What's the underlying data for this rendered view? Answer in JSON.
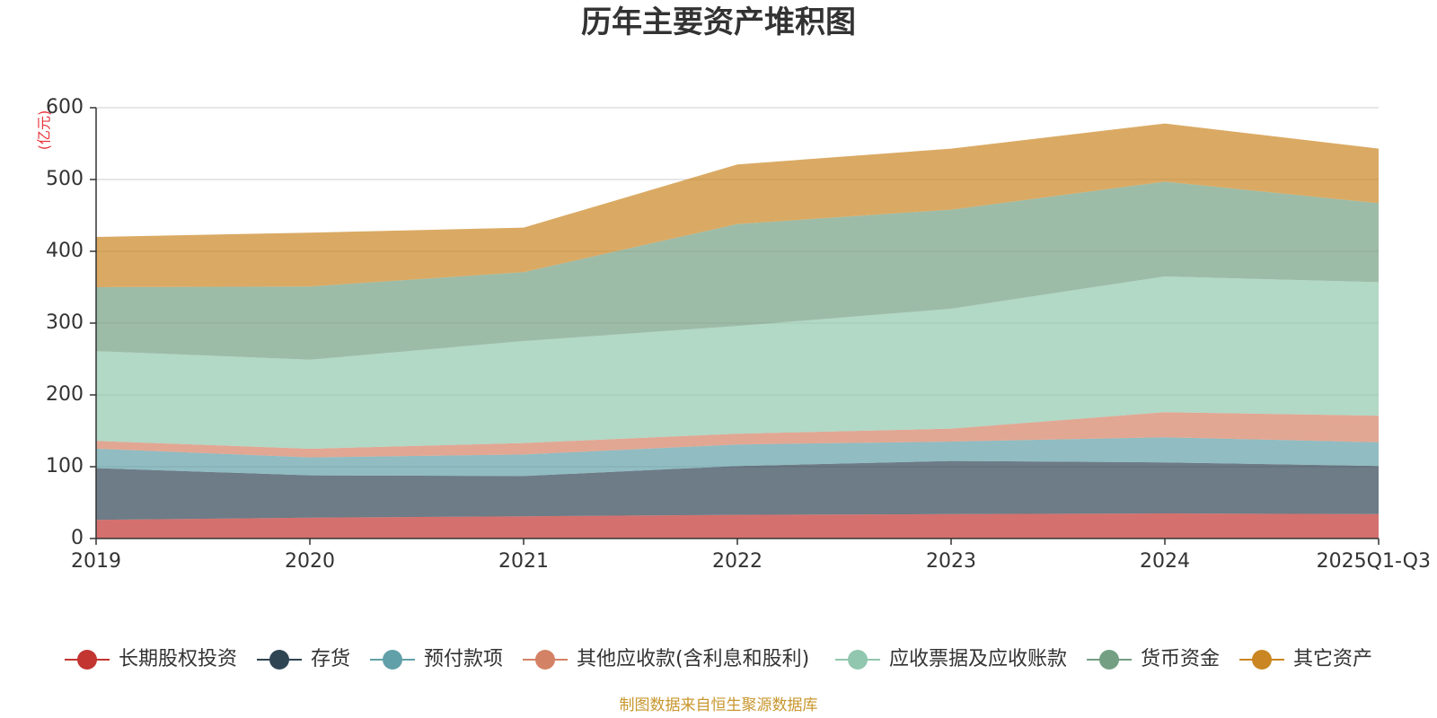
{
  "chart_data": {
    "type": "area",
    "stacked": true,
    "title": "历年主要资产堆积图",
    "unit_label": "(亿元)",
    "categories": [
      "2019",
      "2020",
      "2021",
      "2022",
      "2023",
      "2024",
      "2025Q1-Q3"
    ],
    "ylim": [
      0,
      600
    ],
    "yticks": [
      0,
      100,
      200,
      300,
      400,
      500,
      600
    ],
    "grid": true,
    "legend_position": "bottom",
    "series": [
      {
        "name": "长期股权投资",
        "color": "#c23531",
        "values": [
          26,
          29,
          31,
          33,
          34,
          35,
          34
        ]
      },
      {
        "name": "存货",
        "color": "#2f4554",
        "values": [
          72,
          59,
          56,
          68,
          74,
          71,
          67
        ]
      },
      {
        "name": "预付款项",
        "color": "#61a0a8",
        "values": [
          27,
          25,
          30,
          30,
          27,
          35,
          33
        ]
      },
      {
        "name": "其他应收款(含利息和股利)",
        "color": "#d48265",
        "values": [
          11,
          12,
          16,
          15,
          18,
          35,
          37
        ]
      },
      {
        "name": "应收票据及应收账款",
        "color": "#91c7ae",
        "values": [
          125,
          124,
          142,
          150,
          167,
          189,
          186
        ]
      },
      {
        "name": "货币资金",
        "color": "#749f83",
        "values": [
          89,
          102,
          96,
          142,
          138,
          132,
          110
        ]
      },
      {
        "name": "其它资产",
        "color": "#ca8622",
        "values": [
          70,
          75,
          62,
          83,
          85,
          81,
          76
        ]
      }
    ]
  },
  "footer": {
    "source_text": "制图数据来自恒生聚源数据库"
  }
}
